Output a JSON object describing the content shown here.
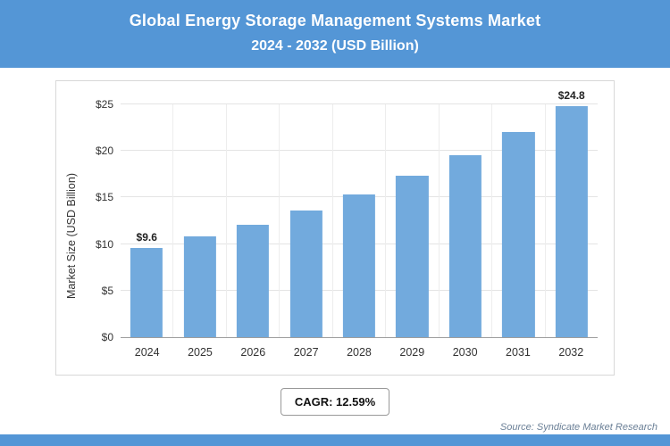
{
  "header": {
    "title_line1": "Global Energy Storage Management Systems Market",
    "title_line2": "2024 - 2032 (USD Billion)"
  },
  "chart_data": {
    "type": "bar",
    "title": "Global Energy Storage Management Systems Market 2024 - 2032 (USD Billion)",
    "categories": [
      "2024",
      "2025",
      "2026",
      "2027",
      "2028",
      "2029",
      "2030",
      "2031",
      "2032"
    ],
    "values": [
      9.6,
      10.8,
      12.1,
      13.6,
      15.3,
      17.3,
      19.5,
      22.0,
      24.8
    ],
    "bar_value_labels": [
      "$9.6",
      "",
      "",
      "",
      "",
      "",
      "",
      "",
      "$24.8"
    ],
    "xlabel": "",
    "ylabel": "Market Size (USD Billion)",
    "yticks": [
      "$0",
      "$5",
      "$10",
      "$15",
      "$20",
      "$25"
    ],
    "ylim": [
      0,
      25
    ],
    "grid": true,
    "legend": "none"
  },
  "footer": {
    "cagr_label": "CAGR: 12.59%",
    "source": "Source: Syndicate Market Research"
  },
  "colors": {
    "header_bg": "#5496d6",
    "bar": "#72aadd",
    "grid": "#e4e4e4"
  }
}
